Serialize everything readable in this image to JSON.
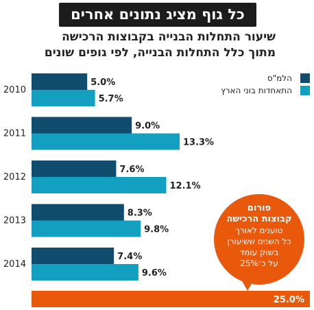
{
  "header": {
    "title": "כל גוף מציג נתונים אחרים"
  },
  "subtitle": {
    "line1": "שיעור התחלות הבנייה בקבוצות הרכישה",
    "line2": "מתוך כלל התחלות הבנייה, לפי גופים שונים"
  },
  "callout": {
    "line1": "פורום",
    "line2": "קבוצות הרכישה",
    "line3": "טוענים לאורך",
    "line4": "כל השנים ששיעורן",
    "line5": "בשוק עומד",
    "line6": "על כ־25%"
  },
  "colors": {
    "series1": "#0f4c6e",
    "series2": "#139fbf",
    "accent": "#e8590c"
  },
  "chart_data": {
    "type": "bar",
    "orientation": "horizontal",
    "categories": [
      "2010",
      "2011",
      "2012",
      "2013",
      "2014"
    ],
    "series": [
      {
        "name": "הלמ\"ס",
        "values": [
          5.0,
          9.0,
          7.6,
          8.3,
          7.4
        ],
        "labels": [
          "5.0%",
          "9.0%",
          "7.6%",
          "8.3%",
          "7.4%"
        ]
      },
      {
        "name": "התאחדות בוני הארץ",
        "values": [
          5.7,
          13.3,
          12.1,
          9.8,
          9.6
        ],
        "labels": [
          "5.7%",
          "13.3%",
          "12.1%",
          "9.8%",
          "9.6%"
        ]
      }
    ],
    "reference": {
      "value": 25.0,
      "label": "25.0%"
    },
    "xlim": [
      0,
      25.0
    ],
    "legend": "top-right",
    "grid": false
  }
}
